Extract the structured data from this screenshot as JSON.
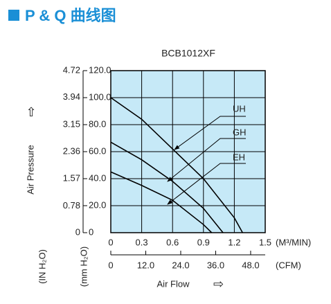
{
  "header": {
    "title": "P & Q 曲线图"
  },
  "chart_data": {
    "type": "line",
    "title": "BCB1012XF",
    "ylabel": "Air Pressure",
    "ylabel_unit": "(mm H₂O)",
    "y2label_unit": "(IN H₂O)",
    "xlabel": "Air Flow",
    "xlabel_unit": "(M³/MIN)",
    "x2label_unit": "(CFM)",
    "xlim": [
      0,
      1.5
    ],
    "xticks": [
      0,
      0.3,
      0.6,
      0.9,
      1.2,
      1.5
    ],
    "x2lim": [
      0,
      53
    ],
    "x2ticks": [
      0,
      {
        "value": 12,
        "label": "12.0"
      },
      {
        "value": 24,
        "label": "24.0"
      },
      {
        "value": 36,
        "label": "36.0"
      },
      {
        "value": 48,
        "label": "48.0"
      }
    ],
    "ylim": [
      0,
      120
    ],
    "yticks": [
      0,
      {
        "value": 20,
        "label": "20.0"
      },
      {
        "value": 40,
        "label": "40.0"
      },
      {
        "value": 60,
        "label": "60.0"
      },
      {
        "value": 80,
        "label": "80.0"
      },
      {
        "value": 100,
        "label": "100.0"
      },
      {
        "value": 120,
        "label": "120.0"
      }
    ],
    "y2lim": [
      0,
      4.72
    ],
    "y2ticks": [
      0,
      0.78,
      1.57,
      2.36,
      3.15,
      3.94,
      4.72
    ],
    "grid": true,
    "background": "#c6e9f7",
    "series": [
      {
        "name": "UH",
        "color": "#000000",
        "x": [
          0,
          0.3,
          0.6,
          0.9,
          1.2,
          1.28
        ],
        "values": [
          100,
          84,
          62,
          40,
          11,
          0
        ]
      },
      {
        "name": "GH",
        "color": "#000000",
        "x": [
          0,
          0.3,
          0.6,
          0.9,
          1.09
        ],
        "values": [
          67,
          54,
          38,
          18,
          0
        ]
      },
      {
        "name": "EH",
        "color": "#000000",
        "x": [
          0,
          0.3,
          0.6,
          0.9,
          0.98
        ],
        "values": [
          45,
          35,
          24,
          6,
          0
        ]
      }
    ]
  }
}
